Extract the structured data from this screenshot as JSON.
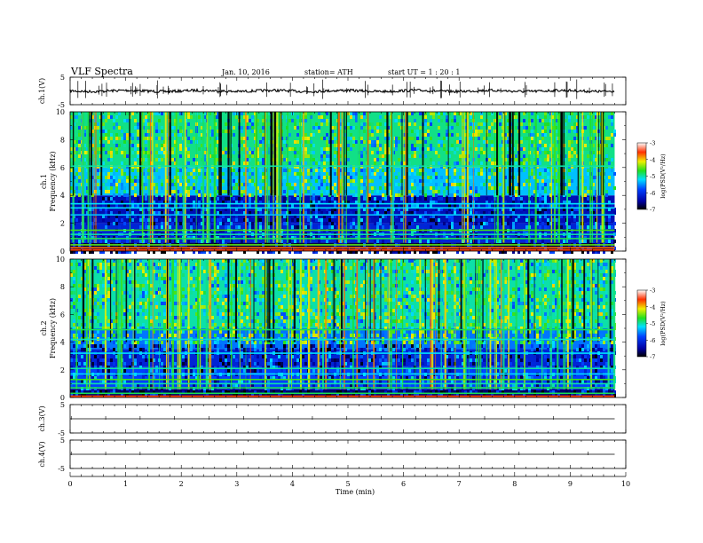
{
  "header": {
    "title": "VLF  Spectra",
    "date": "Jan. 10, 2016",
    "station": "station= ATH",
    "start": "start  UT  =   1  : 20 : 1"
  },
  "chart_data": [
    {
      "type": "line",
      "name": "ch1-waveform",
      "ylabel": "ch.1(V)",
      "ylim": [
        -5,
        5
      ],
      "yticks": [
        "5",
        "-5"
      ],
      "xlim": [
        0,
        10
      ],
      "baseline": 0,
      "x_end": 9.8
    },
    {
      "type": "heatmap",
      "name": "ch1-spectrogram",
      "ylabel": "ch.1\nFrequency (kHz)",
      "ylabel_lines": [
        "ch.1",
        "Frequency (kHz)"
      ],
      "ylim": [
        0,
        10
      ],
      "yticks": [
        "0",
        "2",
        "4",
        "6",
        "8",
        "10"
      ],
      "xlim": [
        0,
        10
      ],
      "x_end": 9.8,
      "colorbar": {
        "label": "log(PSD(V²/Hz)",
        "range": [
          -7,
          -3
        ],
        "ticks": [
          "-3",
          "-4",
          "-5",
          "-6",
          "-7"
        ]
      }
    },
    {
      "type": "heatmap",
      "name": "ch2-spectrogram",
      "ylabel_lines": [
        "ch.2",
        "Frequency (kHz)"
      ],
      "ylim": [
        0,
        10
      ],
      "yticks": [
        "0",
        "2",
        "4",
        "6",
        "8",
        "10"
      ],
      "xlim": [
        0,
        10
      ],
      "x_end": 9.8,
      "colorbar": {
        "label": "log(PSD(V²/Hz)",
        "range": [
          -7,
          -3
        ],
        "ticks": [
          "-3",
          "-4",
          "-5",
          "-6",
          "-7"
        ]
      }
    },
    {
      "type": "line",
      "name": "ch3-waveform",
      "ylabel": "ch.3(V)",
      "ylim": [
        -5,
        5
      ],
      "yticks": [
        "5",
        "-5"
      ],
      "xlim": [
        0,
        10
      ],
      "baseline": 0,
      "x_end": 9.8
    },
    {
      "type": "line",
      "name": "ch4-waveform",
      "ylabel": "ch.4(V)",
      "ylim": [
        -5,
        5
      ],
      "yticks": [
        "5",
        "-5"
      ],
      "xlim": [
        0,
        10
      ],
      "baseline": 0,
      "x_end": 9.8
    }
  ],
  "x_axis": {
    "label": "Time  (min)",
    "range": [
      0,
      10
    ],
    "ticks": [
      "0",
      "1",
      "2",
      "3",
      "4",
      "5",
      "6",
      "7",
      "8",
      "9",
      "10"
    ]
  }
}
